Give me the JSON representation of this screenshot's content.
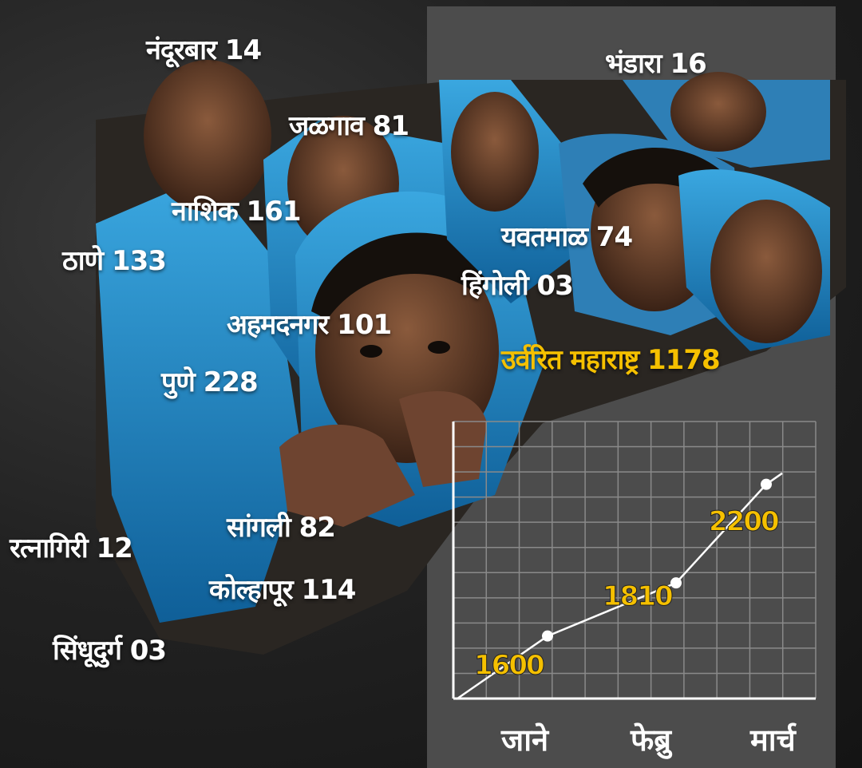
{
  "labels": [
    {
      "text": "नंदूरबार 14"
    },
    {
      "text": "भंडारा 16"
    },
    {
      "text": "जळगाव 81"
    },
    {
      "text": "नाशिक 161"
    },
    {
      "text": "ठाणे 133"
    },
    {
      "text": "यवतमाळ 74"
    },
    {
      "text": "हिंगोली 03"
    },
    {
      "text": "अहमदनगर 101"
    },
    {
      "text": "उर्वरित महाराष्ट्र 1178"
    },
    {
      "text": "पुणे 228"
    },
    {
      "text": "सांगली 82"
    },
    {
      "text": "रत्नागिरी 12"
    },
    {
      "text": "कोल्हापूर 114"
    },
    {
      "text": "सिंधूदुर्ग 03"
    }
  ],
  "chart_data": {
    "type": "line",
    "categories": [
      "जाने",
      "फेब्रु",
      "मार्च"
    ],
    "values": [
      1600,
      1810,
      2200
    ],
    "value_labels": [
      "1600",
      "1810",
      "2200"
    ],
    "grid": true,
    "line_color": "#ffffff",
    "label_color": "#f5c000"
  },
  "colors": {
    "highlight": "#f5c000",
    "text": "#ffffff",
    "panel": "#4c4c4c",
    "scarf": "#1f8fd0"
  }
}
